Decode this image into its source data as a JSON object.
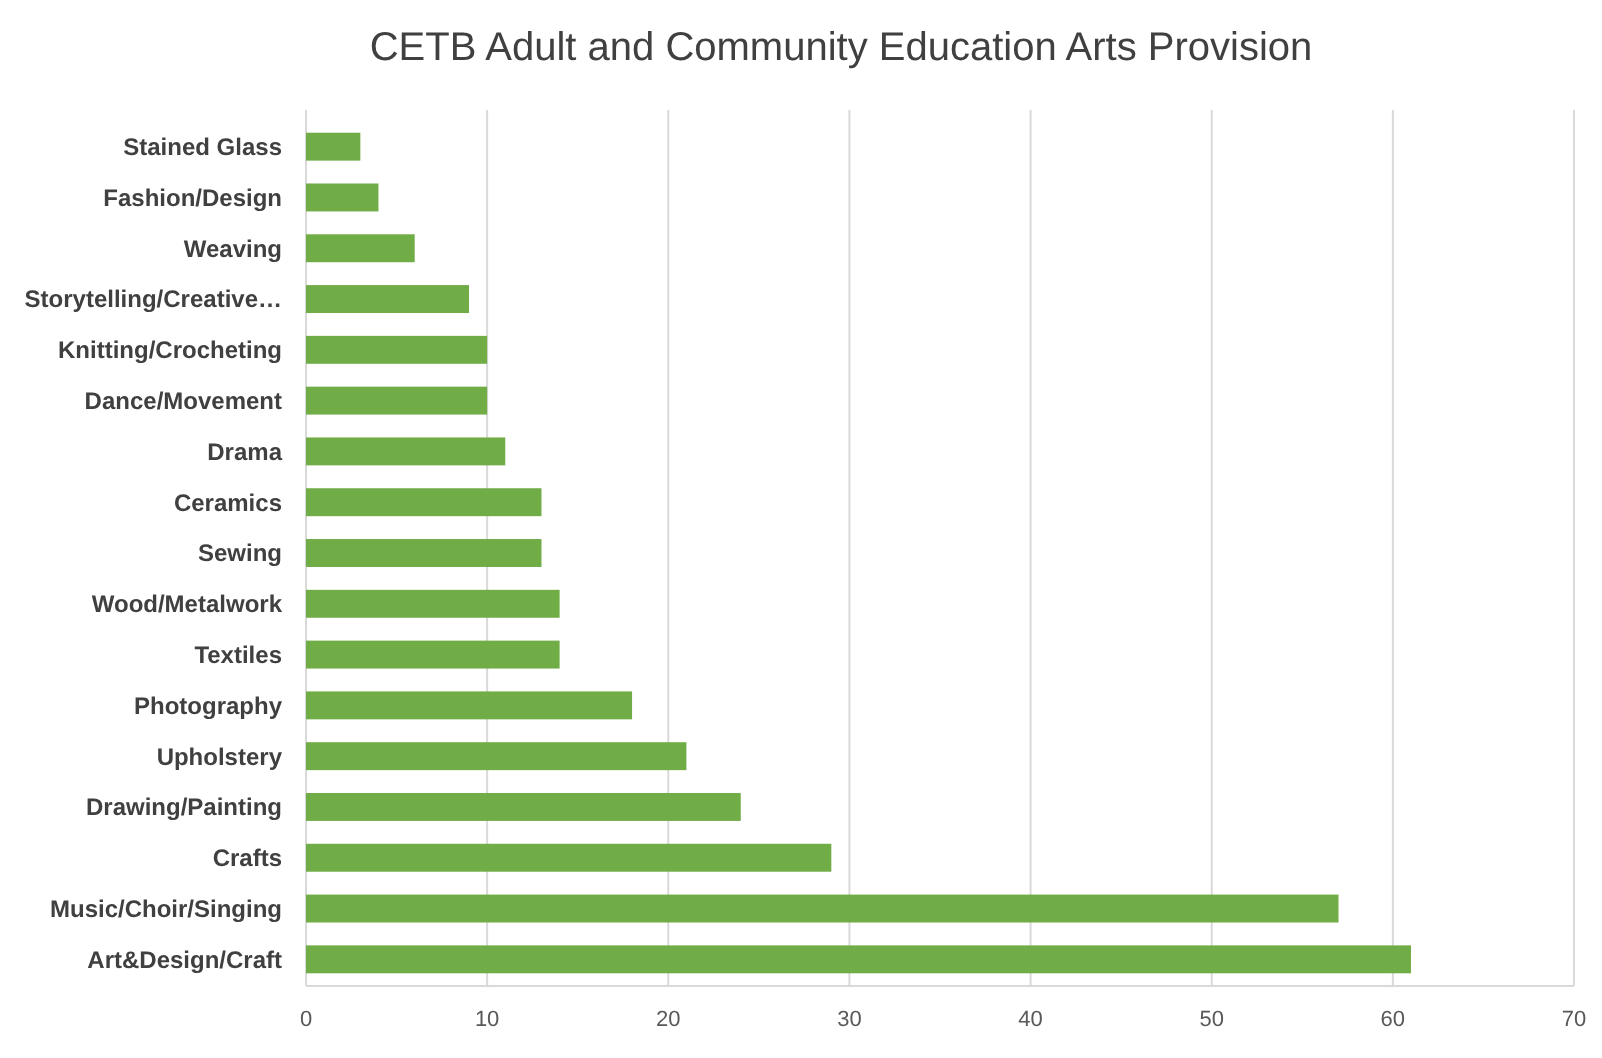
{
  "chart_data": {
    "type": "bar",
    "orientation": "horizontal",
    "title": "CETB Adult and Community Education Arts Provision",
    "categories": [
      "Stained Glass",
      "Fashion/Design",
      "Weaving",
      "Storytelling/Creative…",
      "Knitting/Crocheting",
      "Dance/Movement",
      "Drama",
      "Ceramics",
      "Sewing",
      "Wood/Metalwork",
      "Textiles",
      "Photography",
      "Upholstery",
      "Drawing/Painting",
      "Crafts",
      "Music/Choir/Singing",
      "Art&Design/Craft"
    ],
    "values": [
      3,
      4,
      6,
      9,
      10,
      10,
      11,
      13,
      13,
      14,
      14,
      18,
      21,
      24,
      29,
      57,
      61
    ],
    "color": "#70ad47",
    "xlim": [
      0,
      70
    ],
    "xticks": [
      0,
      10,
      20,
      30,
      40,
      50,
      60,
      70
    ],
    "grid": "x"
  }
}
